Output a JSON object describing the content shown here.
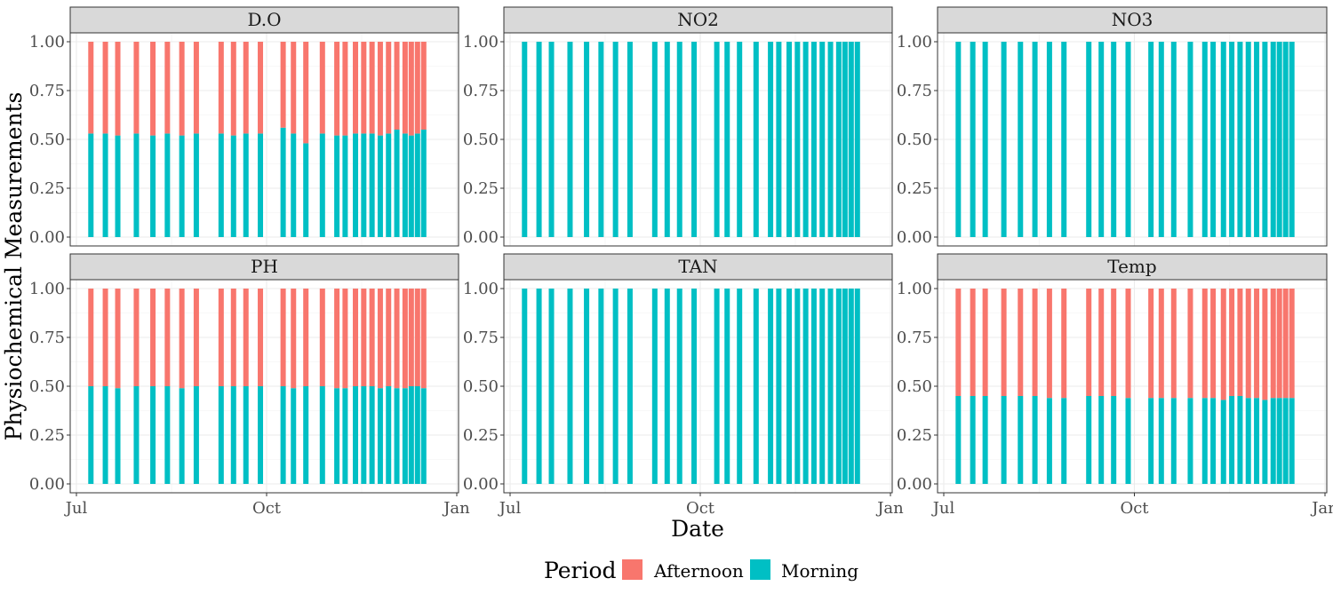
{
  "chart_data": {
    "type": "bar",
    "subtype": "stacked-fill",
    "xlabel": "Date",
    "ylabel": "Physiochemical Measurements",
    "x_ticks": [
      "Jul",
      "Oct",
      "Jan"
    ],
    "x_range": [
      "2020-07-01",
      "2021-01-01"
    ],
    "y_ticks": [
      "0.00",
      "0.25",
      "0.50",
      "0.75",
      "1.00"
    ],
    "ylim": [
      0,
      1
    ],
    "grid": true,
    "legend": {
      "title": "Period",
      "position": "bottom",
      "items": [
        {
          "name": "Afternoon",
          "color": "#F8766D"
        },
        {
          "name": "Morning",
          "color": "#00BFC4"
        }
      ]
    },
    "dates": [
      "2020-07-08",
      "2020-07-15",
      "2020-07-21",
      "2020-07-30",
      "2020-08-07",
      "2020-08-14",
      "2020-08-21",
      "2020-08-28",
      "2020-09-09",
      "2020-09-15",
      "2020-09-21",
      "2020-09-28",
      "2020-10-09",
      "2020-10-14",
      "2020-10-20",
      "2020-10-28",
      "2020-11-04",
      "2020-11-08",
      "2020-11-13",
      "2020-11-17",
      "2020-11-21",
      "2020-11-25",
      "2020-11-29",
      "2020-12-03",
      "2020-12-07",
      "2020-12-10",
      "2020-12-13",
      "2020-12-16"
    ],
    "panels": [
      {
        "name": "D.O",
        "series": [
          {
            "name": "Morning",
            "values": [
              0.53,
              0.53,
              0.52,
              0.53,
              0.52,
              0.53,
              0.52,
              0.53,
              0.53,
              0.52,
              0.53,
              0.53,
              0.56,
              0.53,
              0.48,
              0.53,
              0.52,
              0.52,
              0.53,
              0.53,
              0.53,
              0.52,
              0.53,
              0.55,
              0.53,
              0.52,
              0.53,
              0.55
            ]
          },
          {
            "name": "Afternoon",
            "values": [
              0.47,
              0.47,
              0.48,
              0.47,
              0.48,
              0.47,
              0.48,
              0.47,
              0.47,
              0.48,
              0.47,
              0.47,
              0.44,
              0.47,
              0.52,
              0.47,
              0.48,
              0.48,
              0.47,
              0.47,
              0.47,
              0.48,
              0.47,
              0.45,
              0.47,
              0.48,
              0.47,
              0.45
            ]
          }
        ]
      },
      {
        "name": "NO2",
        "series": [
          {
            "name": "Morning",
            "values": [
              1,
              1,
              1,
              1,
              1,
              1,
              1,
              1,
              1,
              1,
              1,
              1,
              1,
              1,
              1,
              1,
              1,
              1,
              1,
              1,
              1,
              1,
              1,
              1,
              1,
              1,
              1,
              1
            ]
          },
          {
            "name": "Afternoon",
            "values": [
              0,
              0,
              0,
              0,
              0,
              0,
              0,
              0,
              0,
              0,
              0,
              0,
              0,
              0,
              0,
              0,
              0,
              0,
              0,
              0,
              0,
              0,
              0,
              0,
              0,
              0,
              0,
              0
            ]
          }
        ]
      },
      {
        "name": "NO3",
        "series": [
          {
            "name": "Morning",
            "values": [
              1,
              1,
              1,
              1,
              1,
              1,
              1,
              1,
              1,
              1,
              1,
              1,
              1,
              1,
              1,
              1,
              1,
              1,
              1,
              1,
              1,
              1,
              1,
              1,
              1,
              1,
              1,
              1
            ]
          },
          {
            "name": "Afternoon",
            "values": [
              0,
              0,
              0,
              0,
              0,
              0,
              0,
              0,
              0,
              0,
              0,
              0,
              0,
              0,
              0,
              0,
              0,
              0,
              0,
              0,
              0,
              0,
              0,
              0,
              0,
              0,
              0,
              0
            ]
          }
        ]
      },
      {
        "name": "PH",
        "series": [
          {
            "name": "Morning",
            "values": [
              0.5,
              0.5,
              0.49,
              0.5,
              0.5,
              0.5,
              0.49,
              0.5,
              0.5,
              0.5,
              0.5,
              0.5,
              0.5,
              0.49,
              0.5,
              0.5,
              0.49,
              0.49,
              0.5,
              0.5,
              0.5,
              0.49,
              0.5,
              0.49,
              0.49,
              0.5,
              0.5,
              0.49
            ]
          },
          {
            "name": "Afternoon",
            "values": [
              0.5,
              0.5,
              0.51,
              0.5,
              0.5,
              0.5,
              0.51,
              0.5,
              0.5,
              0.5,
              0.5,
              0.5,
              0.5,
              0.51,
              0.5,
              0.5,
              0.51,
              0.51,
              0.5,
              0.5,
              0.5,
              0.51,
              0.5,
              0.51,
              0.51,
              0.5,
              0.5,
              0.51
            ]
          }
        ]
      },
      {
        "name": "TAN",
        "series": [
          {
            "name": "Morning",
            "values": [
              1,
              1,
              1,
              1,
              1,
              1,
              1,
              1,
              1,
              1,
              1,
              1,
              1,
              1,
              1,
              1,
              1,
              1,
              1,
              1,
              1,
              1,
              1,
              1,
              1,
              1,
              1,
              1
            ]
          },
          {
            "name": "Afternoon",
            "values": [
              0,
              0,
              0,
              0,
              0,
              0,
              0,
              0,
              0,
              0,
              0,
              0,
              0,
              0,
              0,
              0,
              0,
              0,
              0,
              0,
              0,
              0,
              0,
              0,
              0,
              0,
              0,
              0
            ]
          }
        ]
      },
      {
        "name": "Temp",
        "series": [
          {
            "name": "Morning",
            "values": [
              0.45,
              0.45,
              0.45,
              0.45,
              0.45,
              0.45,
              0.44,
              0.44,
              0.45,
              0.45,
              0.45,
              0.44,
              0.44,
              0.44,
              0.44,
              0.44,
              0.44,
              0.44,
              0.43,
              0.45,
              0.45,
              0.44,
              0.44,
              0.43,
              0.44,
              0.44,
              0.44,
              0.44
            ]
          },
          {
            "name": "Afternoon",
            "values": [
              0.55,
              0.55,
              0.55,
              0.55,
              0.55,
              0.55,
              0.56,
              0.56,
              0.55,
              0.55,
              0.55,
              0.56,
              0.56,
              0.56,
              0.56,
              0.56,
              0.56,
              0.56,
              0.57,
              0.55,
              0.55,
              0.56,
              0.56,
              0.57,
              0.56,
              0.56,
              0.56,
              0.56
            ]
          }
        ]
      }
    ]
  }
}
